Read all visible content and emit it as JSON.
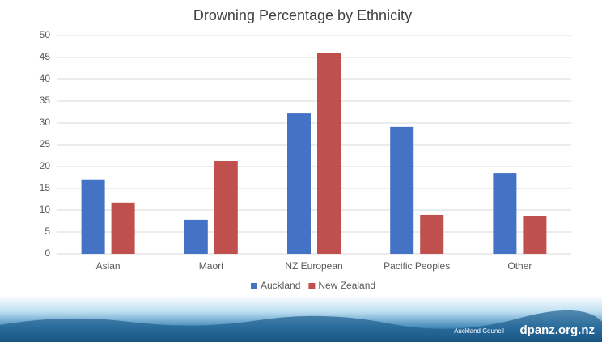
{
  "chart_data": {
    "type": "bar",
    "title": "Drowning Percentage by Ethnicity",
    "categories": [
      "Asian",
      "Maori",
      "NZ European",
      "Pacific Peoples",
      "Other"
    ],
    "series": [
      {
        "name": "Auckland",
        "color": "#4472c4",
        "values": [
          16.9,
          7.8,
          32.2,
          29.1,
          18.5
        ]
      },
      {
        "name": "New Zealand",
        "color": "#c0504d",
        "values": [
          11.7,
          21.3,
          46.1,
          8.9,
          8.7
        ]
      }
    ],
    "ylim": [
      0,
      50
    ],
    "yticks": [
      0,
      5,
      10,
      15,
      20,
      25,
      30,
      35,
      40,
      45,
      50
    ],
    "grid": true,
    "legend": "bottom"
  },
  "footer": {
    "logo": "Auckland Council",
    "site": "dpanz.org.nz"
  }
}
